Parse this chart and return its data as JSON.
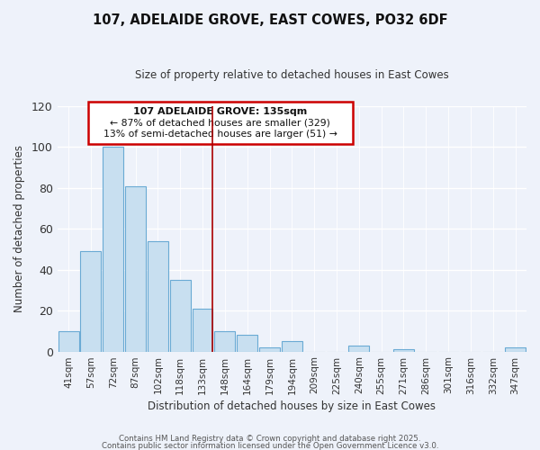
{
  "title": "107, ADELAIDE GROVE, EAST COWES, PO32 6DF",
  "subtitle": "Size of property relative to detached houses in East Cowes",
  "xlabel": "Distribution of detached houses by size in East Cowes",
  "ylabel": "Number of detached properties",
  "bar_color": "#c8dff0",
  "bar_edge_color": "#6aaad4",
  "background_color": "#eef2fa",
  "grid_color": "#ffffff",
  "categories": [
    "41sqm",
    "57sqm",
    "72sqm",
    "87sqm",
    "102sqm",
    "118sqm",
    "133sqm",
    "148sqm",
    "164sqm",
    "179sqm",
    "194sqm",
    "209sqm",
    "225sqm",
    "240sqm",
    "255sqm",
    "271sqm",
    "286sqm",
    "301sqm",
    "316sqm",
    "332sqm",
    "347sqm"
  ],
  "values": [
    10,
    49,
    100,
    81,
    54,
    35,
    21,
    10,
    8,
    2,
    5,
    0,
    0,
    3,
    0,
    1,
    0,
    0,
    0,
    0,
    2
  ],
  "annotation_title": "107 ADELAIDE GROVE: 135sqm",
  "annotation_line1": "← 87% of detached houses are smaller (329)",
  "annotation_line2": "13% of semi-detached houses are larger (51) →",
  "vline_bar_index": 6,
  "vline_color": "#aa0000",
  "ylim": [
    0,
    120
  ],
  "yticks": [
    0,
    20,
    40,
    60,
    80,
    100,
    120
  ],
  "footnote1": "Contains HM Land Registry data © Crown copyright and database right 2025.",
  "footnote2": "Contains public sector information licensed under the Open Government Licence v3.0."
}
